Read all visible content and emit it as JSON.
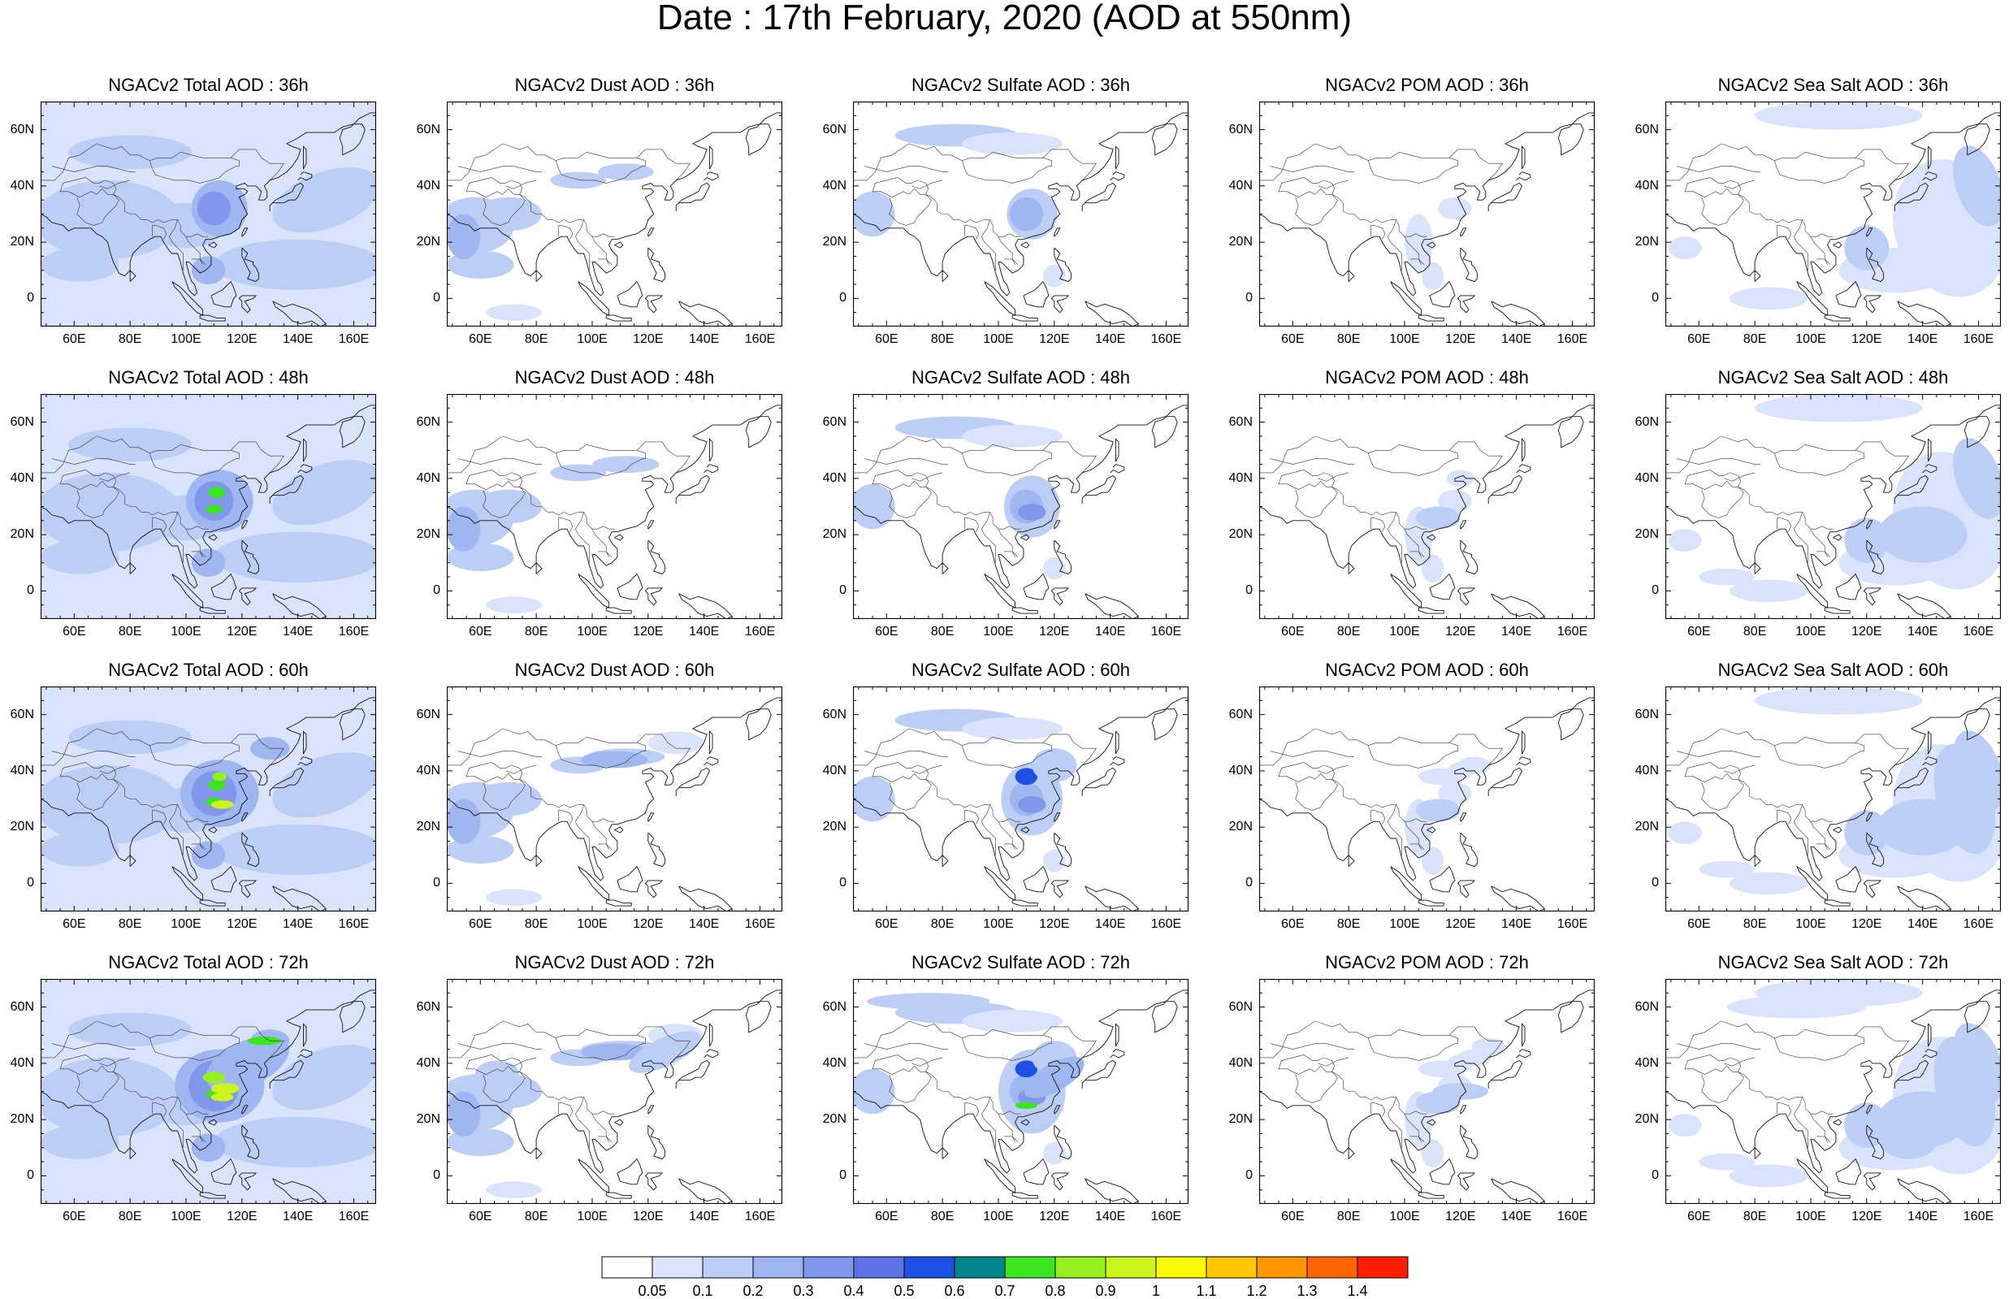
{
  "title": "Date : 17th February, 2020 (AOD at 550nm)",
  "columns": [
    {
      "species": "total",
      "titles": [
        "NGACv2 Total AOD : 36h",
        "NGACv2 Total AOD : 48h",
        "NGACv2 Total AOD : 60h",
        "NGACv2 Total AOD : 72h"
      ]
    },
    {
      "species": "dust",
      "titles": [
        "NGACv2 Dust AOD : 36h",
        "NGACv2 Dust AOD : 48h",
        "NGACv2 Dust AOD : 60h",
        "NGACv2 Dust AOD : 72h"
      ]
    },
    {
      "species": "sulfate",
      "titles": [
        "NGACv2 Sulfate AOD : 36h",
        "NGACv2 Sulfate AOD : 48h",
        "NGACv2 Sulfate AOD : 60h",
        "NGACv2 Sulfate AOD : 72h"
      ]
    },
    {
      "species": "pom",
      "titles": [
        "NGACv2 POM AOD : 36h",
        "NGACv2 POM AOD : 48h",
        "NGACv2 POM AOD : 60h",
        "NGACv2 POM AOD : 72h"
      ]
    },
    {
      "species": "seasalt",
      "titles": [
        "NGACv2 Sea Salt AOD : 36h",
        "NGACv2 Sea Salt AOD : 48h",
        "NGACv2 Sea Salt AOD : 60h",
        "NGACv2 Sea Salt  AOD : 72h"
      ]
    }
  ],
  "lon_ticks": [
    "60E",
    "80E",
    "100E",
    "120E",
    "140E",
    "160E"
  ],
  "lat_ticks": [
    "60N",
    "40N",
    "20N",
    "0"
  ],
  "colorbar": {
    "labels": [
      "0.05",
      "0.1",
      "0.2",
      "0.3",
      "0.4",
      "0.5",
      "0.6",
      "0.7",
      "0.8",
      "0.9",
      "1",
      "1.1",
      "1.2",
      "1.3",
      "1.4"
    ],
    "colors": [
      "#ffffff",
      "#d9e3fb",
      "#bccdf6",
      "#9fb6f1",
      "#8097ec",
      "#5f72e6",
      "#1e50e6",
      "#00878c",
      "#3ce61e",
      "#96f01e",
      "#ccf51e",
      "#fafa00",
      "#ffc800",
      "#ff9600",
      "#ff6400",
      "#ff1e00"
    ]
  }
}
